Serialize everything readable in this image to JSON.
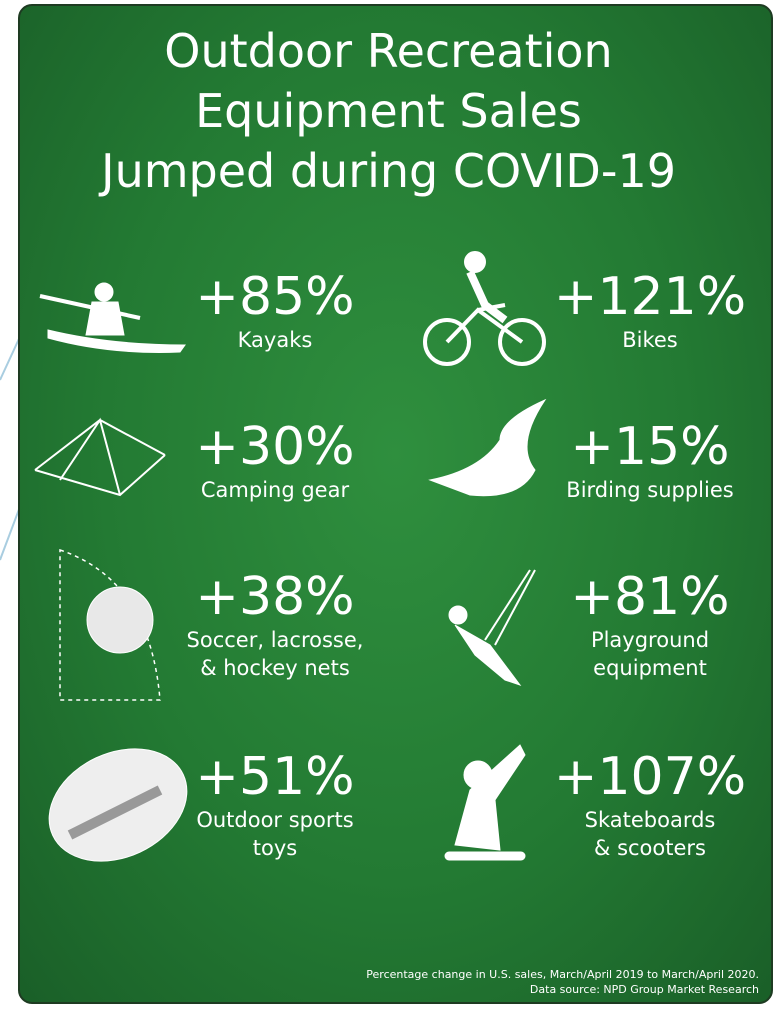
{
  "title": [
    "Outdoor Recreation",
    "Equipment Sales",
    "Jumped during COVID-19"
  ],
  "items": [
    {
      "stat": "+85%",
      "label": [
        "Kayaks"
      ]
    },
    {
      "stat": "+121%",
      "label": [
        "Bikes"
      ]
    },
    {
      "stat": "+30%",
      "label": [
        "Camping gear"
      ]
    },
    {
      "stat": "+15%",
      "label": [
        "Birding supplies"
      ]
    },
    {
      "stat": "+38%",
      "label": [
        "Soccer, lacrosse,",
        "& hockey nets"
      ]
    },
    {
      "stat": "+81%",
      "label": [
        "Playground",
        "equipment"
      ]
    },
    {
      "stat": "+51%",
      "label": [
        "Outdoor sports",
        "toys"
      ]
    },
    {
      "stat": "+107%",
      "label": [
        "Skateboards",
        "& scooters"
      ]
    }
  ],
  "footnote": [
    "Percentage change in U.S. sales, March/April 2019 to March/April 2020.",
    "Data source: NPD Group Market Research"
  ]
}
